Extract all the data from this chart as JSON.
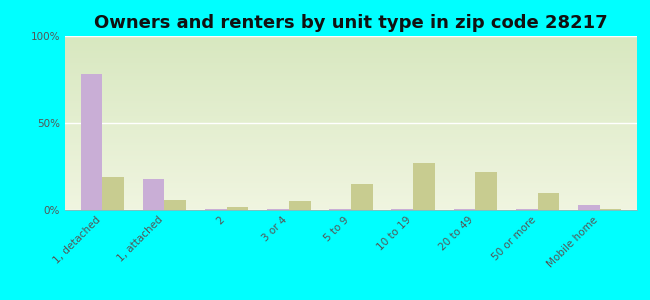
{
  "title": "Owners and renters by unit type in zip code 28217",
  "categories": [
    "1, detached",
    "1, attached",
    "2",
    "3 or 4",
    "5 to 9",
    "10 to 19",
    "20 to 49",
    "50 or more",
    "Mobile home"
  ],
  "owner_values": [
    78,
    18,
    0.5,
    0.5,
    0.5,
    0.5,
    0.5,
    0.5,
    3
  ],
  "renter_values": [
    19,
    6,
    1.5,
    5,
    15,
    27,
    22,
    10,
    0.5
  ],
  "owner_color": "#c9aed6",
  "renter_color": "#c8cc90",
  "background_color": "#00ffff",
  "ylim": [
    0,
    100
  ],
  "yticks": [
    0,
    50,
    100
  ],
  "ytick_labels": [
    "0%",
    "50%",
    "100%"
  ],
  "title_fontsize": 13,
  "tick_fontsize": 7.5,
  "bar_width": 0.35
}
